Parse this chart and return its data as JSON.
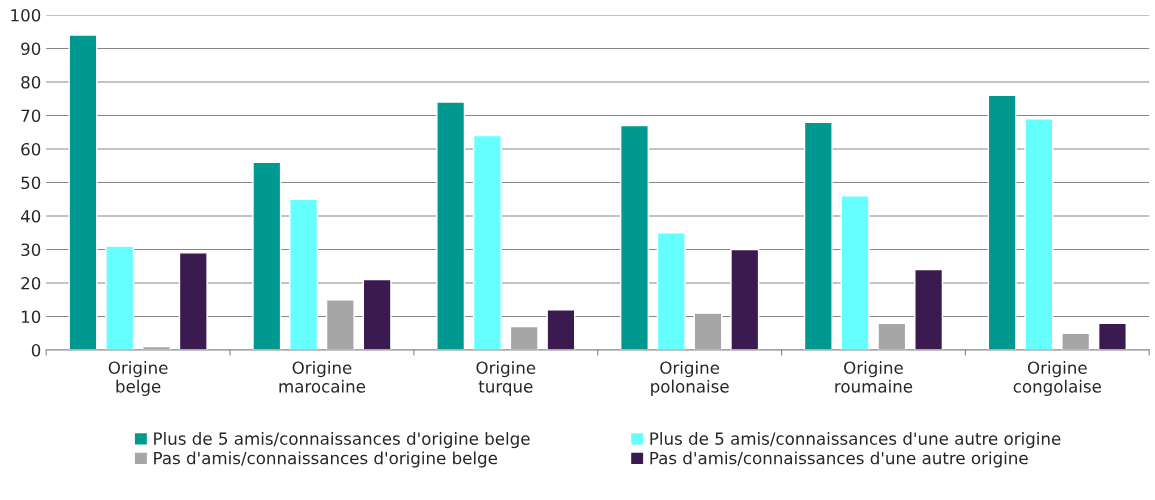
{
  "chart_data": {
    "type": "bar",
    "categories": [
      "Origine\nbelge",
      "Origine\nmarocaine",
      "Origine\nturque",
      "Origine\npolonaise",
      "Origine\nroumaine",
      "Origine\ncongolaise"
    ],
    "series": [
      {
        "name": "Plus de 5 amis/connaissances d'origine belge",
        "color": "#009990",
        "values": [
          94,
          56,
          74,
          67,
          68,
          76
        ]
      },
      {
        "name": "Plus de 5 amis/connaissances d'une autre origine",
        "color": "#66ffff",
        "values": [
          31,
          45,
          64,
          35,
          46,
          69
        ]
      },
      {
        "name": "Pas d'amis/connaissances d'origine belge",
        "color": "#a6a6a6",
        "values": [
          1,
          15,
          7,
          11,
          8,
          5
        ]
      },
      {
        "name": "Pas d'amis/connaissances d'une autre origine",
        "color": "#3b1a4f",
        "values": [
          29,
          21,
          12,
          30,
          24,
          8
        ]
      }
    ],
    "ylim": [
      0,
      100
    ],
    "yticks": [
      0,
      10,
      20,
      30,
      40,
      50,
      60,
      70,
      80,
      90,
      100
    ],
    "grid": "y",
    "legend": "bottom"
  }
}
